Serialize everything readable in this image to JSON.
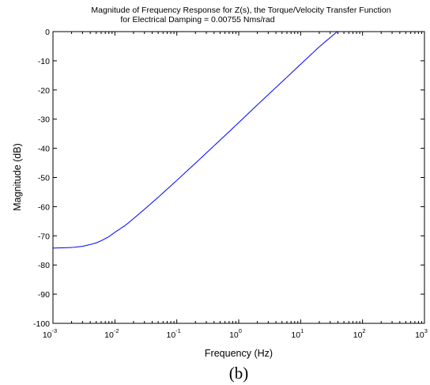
{
  "chart_data": {
    "type": "line",
    "title_lines": [
      "Magnitude of Frequency Response for Z(s), the Torque/Velocity Transfer Function",
      "for Electrical Damping = 0.00755 Nms/rad"
    ],
    "xlabel": "Frequency (Hz)",
    "ylabel": "Magnitude (dB)",
    "xscale": "log",
    "xlim": [
      0.001,
      1000
    ],
    "ylim": [
      -100,
      0
    ],
    "x_ticks": [
      {
        "base": "10",
        "exp": "-3",
        "value": 0.001
      },
      {
        "base": "10",
        "exp": "-2",
        "value": 0.01
      },
      {
        "base": "10",
        "exp": "-1",
        "value": 0.1
      },
      {
        "base": "10",
        "exp": "0",
        "value": 1
      },
      {
        "base": "10",
        "exp": "1",
        "value": 10
      },
      {
        "base": "10",
        "exp": "2",
        "value": 100
      },
      {
        "base": "10",
        "exp": "3",
        "value": 1000
      }
    ],
    "y_ticks": [
      "0",
      "-10",
      "-20",
      "-30",
      "-40",
      "-50",
      "-60",
      "-70",
      "-80",
      "-90",
      "-100"
    ],
    "y_tick_values": [
      0,
      -10,
      -20,
      -30,
      -40,
      -50,
      -60,
      -70,
      -80,
      -90,
      -100
    ],
    "grid": false,
    "series": [
      {
        "color": "#0000ff",
        "x": [
          0.001,
          0.0015,
          0.002,
          0.003,
          0.004,
          0.005,
          0.006,
          0.008,
          0.01,
          0.015,
          0.02,
          0.03,
          0.05,
          0.1,
          0.2,
          0.5,
          1,
          2,
          5,
          10,
          20,
          39
        ],
        "y": [
          -74.2,
          -74.1,
          -74.0,
          -73.6,
          -73.0,
          -72.4,
          -71.7,
          -70.3,
          -68.8,
          -66.3,
          -64.1,
          -60.9,
          -56.8,
          -51.0,
          -45.1,
          -37.2,
          -31.2,
          -25.1,
          -17.2,
          -11.2,
          -5.2,
          0
        ]
      }
    ]
  },
  "caption": "(b)"
}
